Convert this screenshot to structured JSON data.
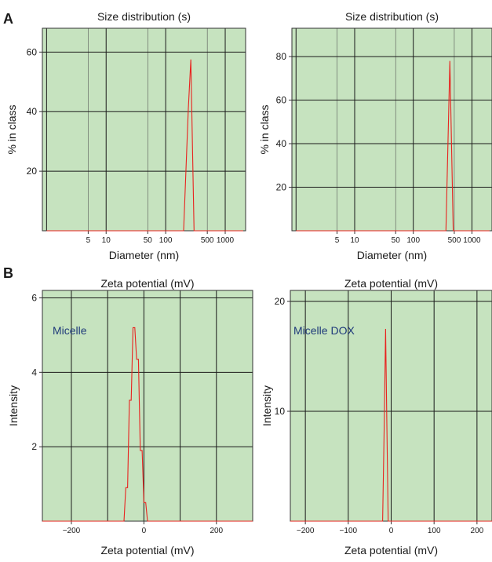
{
  "panel_labels": [
    "A",
    "B"
  ],
  "chart_data": [
    {
      "type": "line",
      "scale_x": "log",
      "title": "Size distribution (s)",
      "xlabel": "Diameter (nm)",
      "ylabel": "% in class",
      "xlim": [
        0.85,
        2200
      ],
      "ylim": [
        0,
        68
      ],
      "xticks": [
        5,
        10,
        50,
        100,
        500,
        1000
      ],
      "xtick_labels": [
        "5",
        "10",
        "50",
        "100",
        "500",
        "1000"
      ],
      "xgrid": [
        1,
        10,
        100,
        1000
      ],
      "xgrid_minor": [
        5,
        50,
        500
      ],
      "yticks": [
        20,
        40,
        60
      ],
      "grid": true,
      "background": "#c6e3bf",
      "line_color": "#e8231f",
      "annotation": "",
      "series": [
        {
          "x": [
            1,
            2,
            5,
            10,
            50,
            100,
            150,
            200,
            240,
            265,
            300,
            340,
            2000
          ],
          "y": [
            0,
            0,
            0,
            0,
            0,
            0,
            0,
            0,
            41,
            57.5,
            0,
            0,
            0
          ]
        }
      ]
    },
    {
      "type": "line",
      "scale_x": "log",
      "title": "Size distribution (s)",
      "xlabel": "Diameter (nm)",
      "ylabel": "% in class",
      "xlim": [
        0.85,
        2200
      ],
      "ylim": [
        0,
        93
      ],
      "xticks": [
        5,
        10,
        50,
        100,
        500,
        1000
      ],
      "xtick_labels": [
        "5",
        "10",
        "50",
        "100",
        "500",
        "1000"
      ],
      "xgrid": [
        1,
        10,
        100,
        1000
      ],
      "xgrid_minor": [
        5,
        50,
        500
      ],
      "yticks": [
        20,
        40,
        60,
        80
      ],
      "grid": true,
      "background": "#c6e3bf",
      "line_color": "#e8231f",
      "annotation": "",
      "series": [
        {
          "x": [
            1,
            5,
            10,
            50,
            100,
            200,
            300,
            360,
            420,
            480,
            560,
            2000
          ],
          "y": [
            0,
            0,
            0,
            0,
            0,
            0,
            0,
            0,
            78,
            0,
            0,
            0
          ]
        }
      ]
    },
    {
      "type": "line",
      "scale_x": "linear",
      "title": "Zeta potential (mV)",
      "xlabel": "Zeta potential (mV)",
      "ylabel": "Intensity",
      "xlim": [
        -280,
        300
      ],
      "ylim": [
        0,
        6.2
      ],
      "xticks": [
        -200,
        0,
        200
      ],
      "xtick_labels": [
        "−200",
        "0",
        "200"
      ],
      "xgrid": [
        -200,
        -100,
        0,
        100,
        200
      ],
      "xgrid_minor": [],
      "yticks": [
        2,
        4,
        6
      ],
      "grid": true,
      "background": "#c6e3bf",
      "line_color": "#e8231f",
      "annotation": "Micelle",
      "series": [
        {
          "x": [
            -280,
            -55,
            -50,
            -45,
            -40,
            -35,
            -30,
            -25,
            -20,
            -15,
            -10,
            -5,
            0,
            5,
            10,
            15,
            300
          ],
          "y": [
            0,
            0,
            0.9,
            0.9,
            3.25,
            3.25,
            5.2,
            5.2,
            4.35,
            4.35,
            1.9,
            1.9,
            0.5,
            0.5,
            0,
            0,
            0
          ]
        }
      ]
    },
    {
      "type": "line",
      "scale_x": "linear",
      "title": "Zeta potential (mV)",
      "xlabel": "Zeta potential (mV)",
      "ylabel": "Intensity",
      "xlim": [
        -235,
        235
      ],
      "ylim": [
        0,
        21
      ],
      "xticks": [
        -200,
        -100,
        0,
        100,
        200
      ],
      "xtick_labels": [
        "−200",
        "−100",
        "0",
        "100",
        "200"
      ],
      "xgrid": [
        -200,
        -100,
        0,
        100,
        200
      ],
      "xgrid_minor": [],
      "yticks": [
        10,
        20
      ],
      "grid": true,
      "background": "#c6e3bf",
      "line_color": "#e8231f",
      "annotation": "Micelle DOX",
      "series": [
        {
          "x": [
            -235,
            -20,
            -16,
            -13,
            -10,
            -7,
            -4,
            235
          ],
          "y": [
            0,
            0,
            9.4,
            17.5,
            8.8,
            0,
            0,
            0
          ]
        }
      ]
    }
  ]
}
